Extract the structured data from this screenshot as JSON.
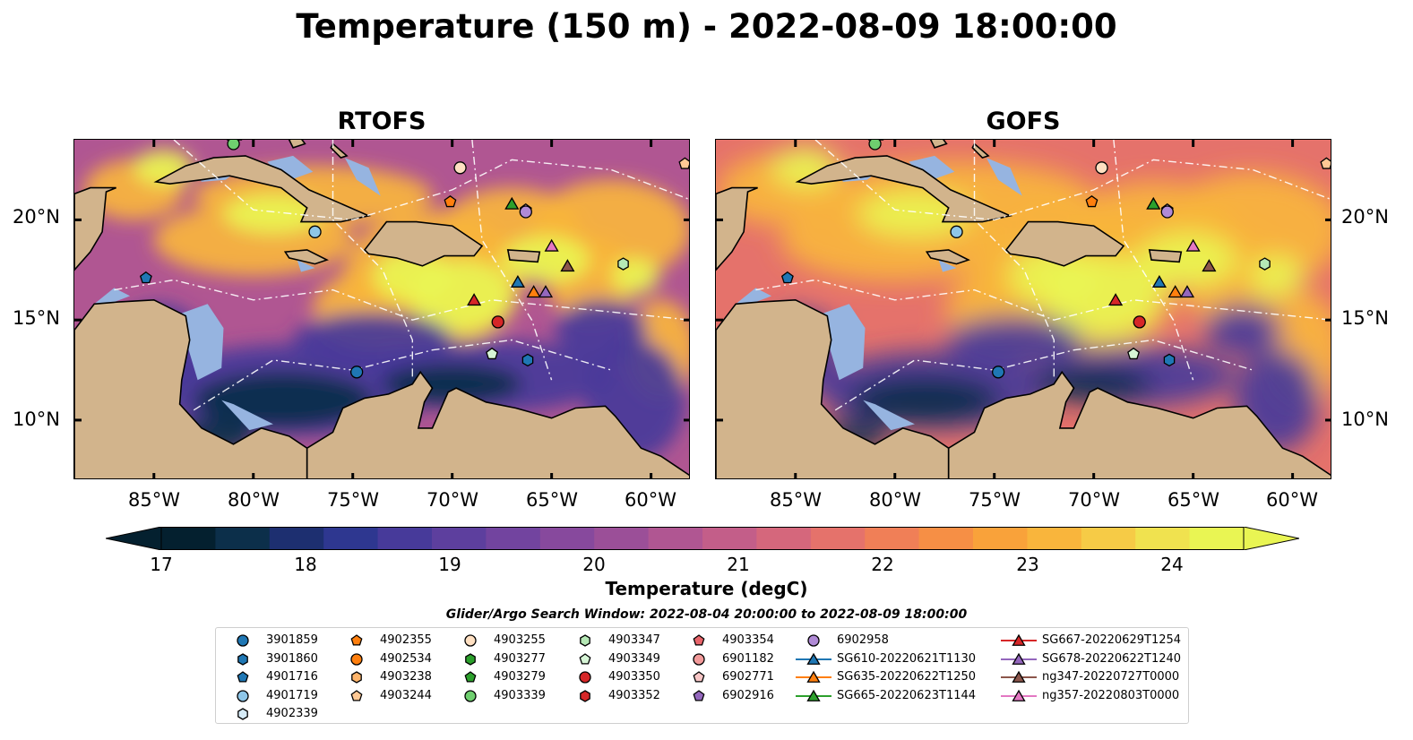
{
  "title": "Temperature (150 m) - 2022-08-09 18:00:00",
  "panels": [
    {
      "title": "RTOFS"
    },
    {
      "title": "GOFS"
    }
  ],
  "map_extent": {
    "lon": [
      -89,
      -58
    ],
    "lat": [
      7,
      24
    ]
  },
  "lat_ticks": [
    "20°N",
    "15°N",
    "10°N"
  ],
  "lon_ticks": [
    "85°W",
    "80°W",
    "75°W",
    "70°W",
    "65°W",
    "60°W"
  ],
  "colorbar": {
    "label": "Temperature (degC)",
    "ticks": [
      "17",
      "18",
      "19",
      "20",
      "21",
      "22",
      "23",
      "24"
    ],
    "range": [
      16.75,
      24.75
    ],
    "colors": [
      "#04202f",
      "#0c2f4a",
      "#1d2f70",
      "#2e3790",
      "#473a9a",
      "#5d3f9e",
      "#72449f",
      "#87499d",
      "#9b4f98",
      "#b05692",
      "#c35e89",
      "#d5677c",
      "#e5726b",
      "#f07f57",
      "#f68f45",
      "#f9a23a",
      "#f9b53c",
      "#f6cb46",
      "#f0e24f",
      "#e9f553"
    ]
  },
  "colors": {
    "land": "#d2b48c",
    "shallow": "#96b4e0",
    "extend_low": "#04202f",
    "extend_high": "#e9f553"
  },
  "search_window": "Glider/Argo Search Window: 2022-08-04 20:00:00 to 2022-08-09 18:00:00",
  "legend": [
    {
      "label": "3901859",
      "marker": "circle",
      "color": "#1f77b4"
    },
    {
      "label": "3901860",
      "marker": "hexagon",
      "color": "#1f77b4"
    },
    {
      "label": "4901716",
      "marker": "pentagon",
      "color": "#1f77b4"
    },
    {
      "label": "4901719",
      "marker": "circle",
      "color": "#8ec6e8"
    },
    {
      "label": "4902339",
      "marker": "hexagon",
      "color": "#d6ebf7"
    },
    {
      "label": "4902355",
      "marker": "pentagon",
      "color": "#ff7f0e"
    },
    {
      "label": "4902534",
      "marker": "circle",
      "color": "#ff7f0e"
    },
    {
      "label": "4903238",
      "marker": "hexagon",
      "color": "#ffb56b"
    },
    {
      "label": "4903244",
      "marker": "pentagon",
      "color": "#ffc995"
    },
    {
      "label": "4903255",
      "marker": "circle",
      "color": "#ffe0c2"
    },
    {
      "label": "4903277",
      "marker": "hexagon",
      "color": "#2ca02c"
    },
    {
      "label": "4903279",
      "marker": "pentagon",
      "color": "#2ca02c"
    },
    {
      "label": "4903339",
      "marker": "circle",
      "color": "#6fcf6f"
    },
    {
      "label": "4903347",
      "marker": "hexagon",
      "color": "#b5e8b5"
    },
    {
      "label": "4903349",
      "marker": "pentagon",
      "color": "#d6f5d6"
    },
    {
      "label": "4903350",
      "marker": "circle",
      "color": "#d62728"
    },
    {
      "label": "4903352",
      "marker": "hexagon",
      "color": "#d62728"
    },
    {
      "label": "4903354",
      "marker": "pentagon",
      "color": "#e8646a"
    },
    {
      "label": "6901182",
      "marker": "circle",
      "color": "#f29a9a"
    },
    {
      "label": "6902771",
      "marker": "pentagon",
      "color": "#f7c6c6"
    },
    {
      "label": "6902916",
      "marker": "pentagon",
      "color": "#9467bd"
    },
    {
      "label": "6902958",
      "marker": "circle",
      "color": "#b08ad6"
    },
    {
      "label": "SG610-20220621T1130",
      "marker": "triangle-line",
      "color": "#1f77b4"
    },
    {
      "label": "SG635-20220622T1250",
      "marker": "triangle-line",
      "color": "#ff7f0e"
    },
    {
      "label": "SG665-20220623T1144",
      "marker": "triangle-line",
      "color": "#2ca02c"
    },
    {
      "label": "SG667-20220629T1254",
      "marker": "triangle-line",
      "color": "#d62728"
    },
    {
      "label": "SG678-20220622T1240",
      "marker": "triangle-line",
      "color": "#9467bd"
    },
    {
      "label": "ng347-20220727T0000",
      "marker": "triangle-line",
      "color": "#8c564b"
    },
    {
      "label": "ng357-20220803T0000",
      "marker": "triangle-line",
      "color": "#e377c2"
    }
  ],
  "platforms": [
    {
      "id": "3901859",
      "lon": -74.8,
      "lat": 12.4
    },
    {
      "id": "3901860",
      "lon": -66.2,
      "lat": 13.0
    },
    {
      "id": "4901716",
      "lon": -85.4,
      "lat": 17.1
    },
    {
      "id": "4901719",
      "lon": -76.9,
      "lat": 19.4
    },
    {
      "id": "4902355",
      "lon": -70.1,
      "lat": 20.9
    },
    {
      "id": "4903255",
      "lon": -69.6,
      "lat": 22.6
    },
    {
      "id": "4903244",
      "lon": -58.3,
      "lat": 22.8
    },
    {
      "id": "4903347",
      "lon": -61.4,
      "lat": 17.8
    },
    {
      "id": "4903349",
      "lon": -68.0,
      "lat": 13.3
    },
    {
      "id": "4903339",
      "lon": -81.0,
      "lat": 23.8
    },
    {
      "id": "4903350",
      "lon": -67.7,
      "lat": 14.9
    },
    {
      "id": "6902771",
      "lon": -66.3,
      "lat": 20.5
    },
    {
      "id": "6902958",
      "lon": -66.3,
      "lat": 20.4
    },
    {
      "id": "SG610-20220621T1130",
      "lon": -66.7,
      "lat": 16.9
    },
    {
      "id": "SG635-20220622T1250",
      "lon": -65.9,
      "lat": 16.4
    },
    {
      "id": "SG665-20220623T1144",
      "lon": -67.0,
      "lat": 20.8
    },
    {
      "id": "SG667-20220629T1254",
      "lon": -68.9,
      "lat": 16.0
    },
    {
      "id": "SG678-20220622T1240",
      "lon": -65.3,
      "lat": 16.4
    },
    {
      "id": "ng347-20220727T0000",
      "lon": -64.2,
      "lat": 17.7
    },
    {
      "id": "ng357-20220803T0000",
      "lon": -65.0,
      "lat": 18.7
    }
  ]
}
